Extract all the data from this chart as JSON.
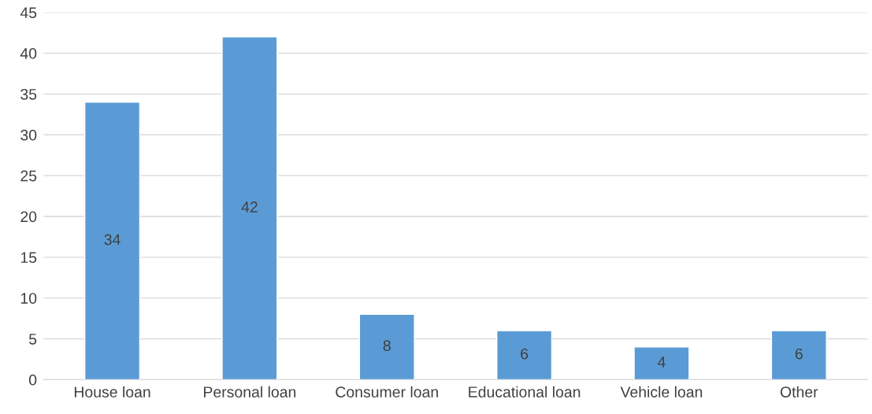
{
  "chart_data": {
    "type": "bar",
    "categories": [
      "House loan",
      "Personal loan",
      "Consumer loan",
      "Educational loan",
      "Vehicle loan",
      "Other"
    ],
    "values": [
      34,
      42,
      8,
      6,
      4,
      6
    ],
    "color": "#5b9bd5",
    "ylim": [
      0,
      45
    ],
    "yticks": [
      0,
      5,
      10,
      15,
      20,
      25,
      30,
      35,
      40,
      45
    ],
    "grid": "y",
    "data_labels": true,
    "legend": false
  }
}
